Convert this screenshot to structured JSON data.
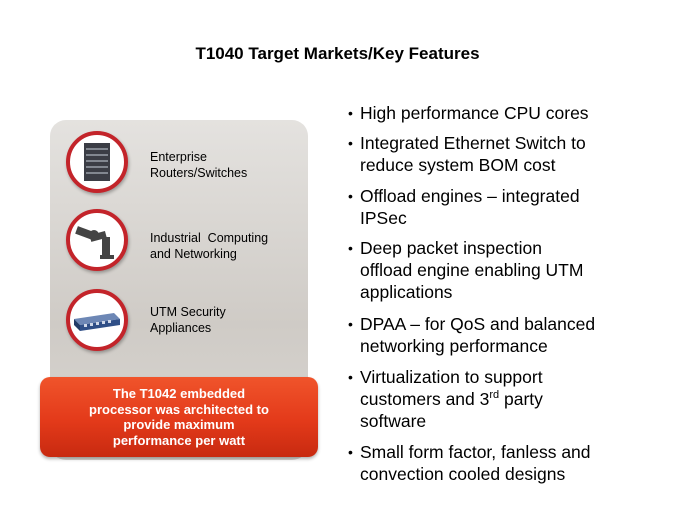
{
  "title": "T1040 Target Markets/Key Features",
  "markets": [
    {
      "lines": [
        "Enterprise",
        "Routers/Switches"
      ]
    },
    {
      "lines": [
        "Industrial  Computing",
        "and Networking"
      ]
    },
    {
      "lines": [
        "UTM Security",
        "Appliances"
      ]
    }
  ],
  "callout": [
    "The T1042 embedded",
    "processor was architected to",
    "provide maximum",
    "performance per watt"
  ],
  "bullets": [
    [
      "High performance CPU cores"
    ],
    [
      "Integrated Ethernet Switch to",
      "reduce system BOM cost"
    ],
    [
      "Offload engines – integrated",
      "IPSec"
    ],
    [
      "Deep packet inspection",
      "offload engine enabling UTM",
      "applications"
    ],
    [
      "DPAA – for QoS and balanced",
      "networking performance"
    ],
    [
      "Virtualization to support",
      {
        "text": "customers and 3",
        "sup": "rd",
        "after": " party"
      },
      "software"
    ],
    [
      "Small form factor, fanless and",
      "convection cooled designs"
    ]
  ]
}
